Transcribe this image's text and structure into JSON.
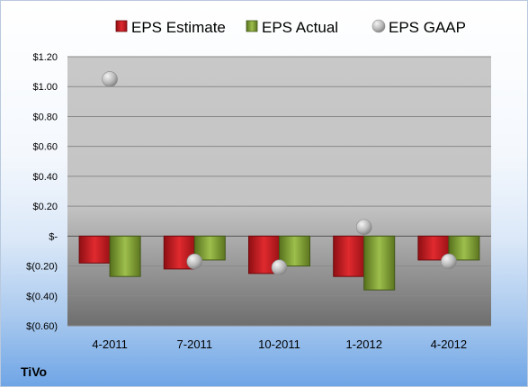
{
  "company": "TiVo",
  "chart_data": {
    "type": "bar",
    "categories": [
      "4-2011",
      "7-2011",
      "10-2011",
      "1-2012",
      "4-2012"
    ],
    "series": [
      {
        "name": "EPS Estimate",
        "kind": "bar",
        "color": "#c8191e",
        "values": [
          -0.18,
          -0.22,
          -0.25,
          -0.27,
          -0.16
        ]
      },
      {
        "name": "EPS Actual",
        "kind": "bar",
        "color": "#7a9a2c",
        "values": [
          -0.27,
          -0.16,
          -0.2,
          -0.36,
          -0.16
        ]
      },
      {
        "name": "EPS GAAP",
        "kind": "scatter",
        "color": "#b4b4b4",
        "values": [
          1.05,
          -0.17,
          -0.21,
          0.06,
          -0.17
        ]
      }
    ],
    "yticks": [
      1.2,
      1.0,
      0.8,
      0.6,
      0.4,
      0.2,
      0,
      -0.2,
      -0.4,
      -0.6
    ],
    "yticklabels": [
      "$1.20",
      "$1.00",
      "$0.80",
      "$0.60",
      "$0.40",
      "$0.20",
      "$-",
      "$(0.20)",
      "$(0.40)",
      "$(0.60)"
    ],
    "ylim": [
      -0.6,
      1.2
    ],
    "grid": true,
    "legend": "top"
  }
}
